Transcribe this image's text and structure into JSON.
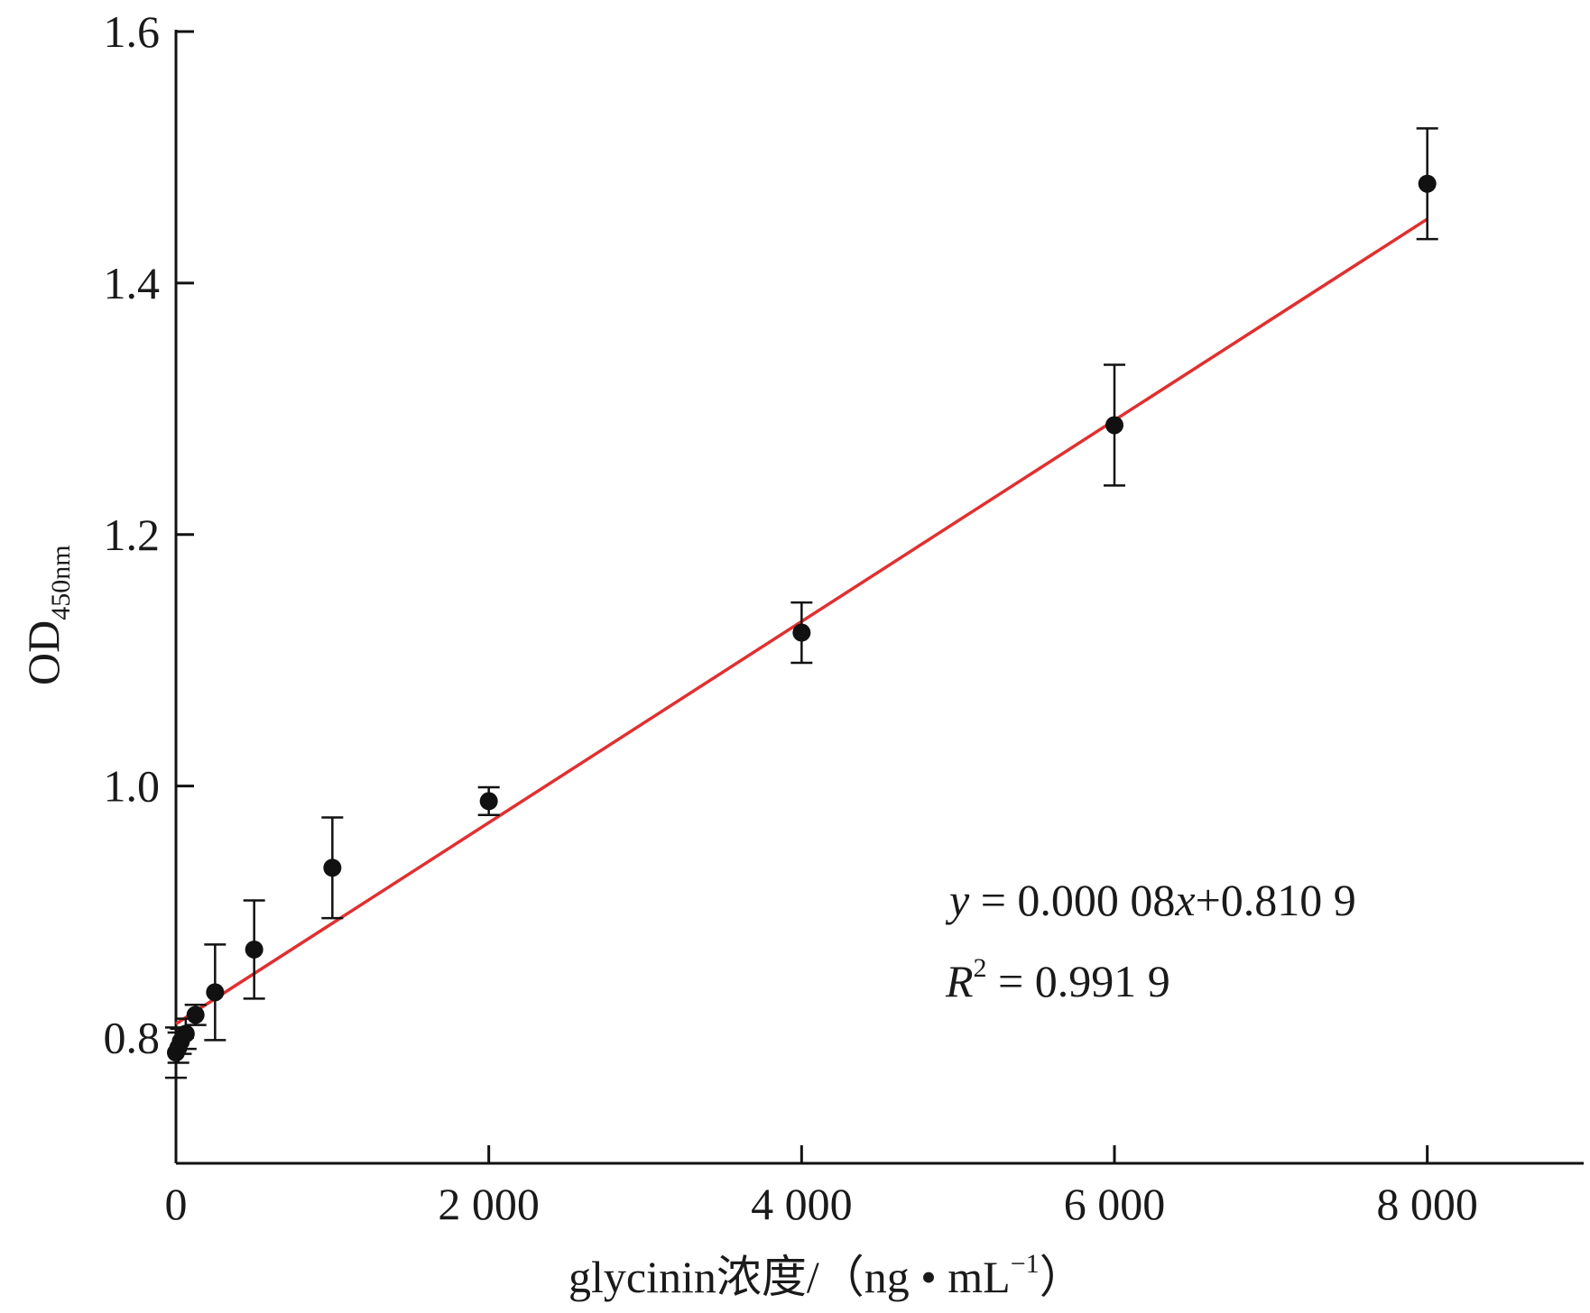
{
  "chart_data": {
    "type": "scatter",
    "title": "",
    "x": [
      0,
      15.6,
      31.25,
      62.5,
      125,
      250,
      500,
      1000,
      2000,
      4000,
      6000,
      8000
    ],
    "y": [
      0.788,
      0.792,
      0.797,
      0.803,
      0.818,
      0.836,
      0.87,
      0.935,
      0.988,
      1.122,
      1.287,
      1.479
    ],
    "error": [
      0.02,
      0.012,
      0.01,
      0.012,
      0.008,
      0.038,
      0.039,
      0.04,
      0.011,
      0.024,
      0.048,
      0.044
    ],
    "fit": {
      "slope": 8e-05,
      "intercept": 0.8109,
      "x_range": [
        0,
        8000
      ],
      "color": "#e03030"
    },
    "equation": {
      "y_var": "y",
      "eq_mid": " = 0.000 08",
      "x_var": "x",
      "eq_tail": "+0.810 9",
      "r_var": "R",
      "r_sup": "2",
      "r_tail": " = 0.991 9"
    },
    "xlabel": {
      "main": "glycinin浓度/（ng • mL",
      "sup": "−1",
      "close": "）"
    },
    "ylabel": {
      "main": "OD",
      "sub": "450nm"
    },
    "xlim": [
      0,
      9000
    ],
    "ylim": [
      0.7,
      1.6
    ],
    "xticks": [
      0,
      2000,
      4000,
      6000,
      8000
    ],
    "xtick_labels": [
      "0",
      "2 000",
      "4 000",
      "6 000",
      "8 000"
    ],
    "yticks": [
      0.8,
      1.0,
      1.2,
      1.4,
      1.6
    ],
    "ytick_labels": [
      "0.8",
      "1.0",
      "1.2",
      "1.4",
      "1.6"
    ],
    "grid": false,
    "marker_color": "#111111"
  }
}
